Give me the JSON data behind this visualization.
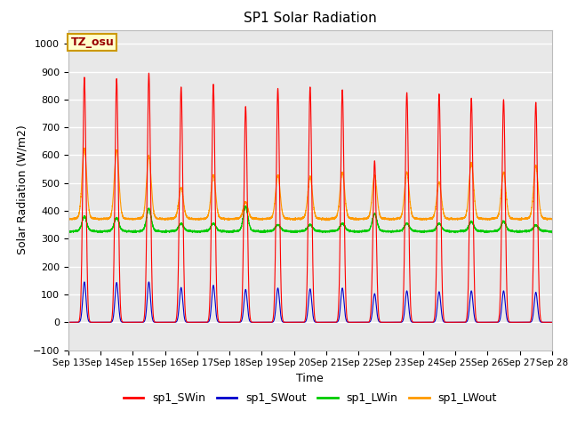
{
  "title": "SP1 Solar Radiation",
  "xlabel": "Time",
  "ylabel": "Solar Radiation (W/m2)",
  "ylim": [
    -100,
    1050
  ],
  "background_color": "#e8e8e8",
  "grid_color": "white",
  "tz_label": "TZ_osu",
  "xtick_labels": [
    "Sep 13",
    "Sep 14",
    "Sep 15",
    "Sep 16",
    "Sep 17",
    "Sep 18",
    "Sep 19",
    "Sep 20",
    "Sep 21",
    "Sep 22",
    "Sep 23",
    "Sep 24",
    "Sep 25",
    "Sep 26",
    "Sep 27",
    "Sep 28"
  ],
  "legend_entries": [
    "sp1_SWin",
    "sp1_SWout",
    "sp1_LWin",
    "sp1_LWout"
  ],
  "legend_colors": [
    "#ff0000",
    "#0000cc",
    "#00cc00",
    "#ff9900"
  ],
  "sw_in_peaks": [
    880,
    875,
    895,
    845,
    855,
    775,
    840,
    845,
    835,
    580,
    825,
    820,
    805,
    800,
    790
  ],
  "sw_out_peaks": [
    145,
    143,
    145,
    125,
    133,
    118,
    123,
    120,
    123,
    103,
    113,
    110,
    113,
    113,
    108
  ],
  "lw_in_night": 325,
  "lw_out_night": 370,
  "lw_in_peaks": [
    380,
    375,
    408,
    355,
    355,
    415,
    350,
    350,
    355,
    390,
    355,
    355,
    362,
    362,
    348
  ],
  "lw_out_peaks": [
    625,
    618,
    598,
    482,
    528,
    432,
    528,
    522,
    538,
    528,
    538,
    502,
    572,
    538,
    562
  ],
  "lw_in_day_base": 330,
  "lw_out_day_base": 375
}
